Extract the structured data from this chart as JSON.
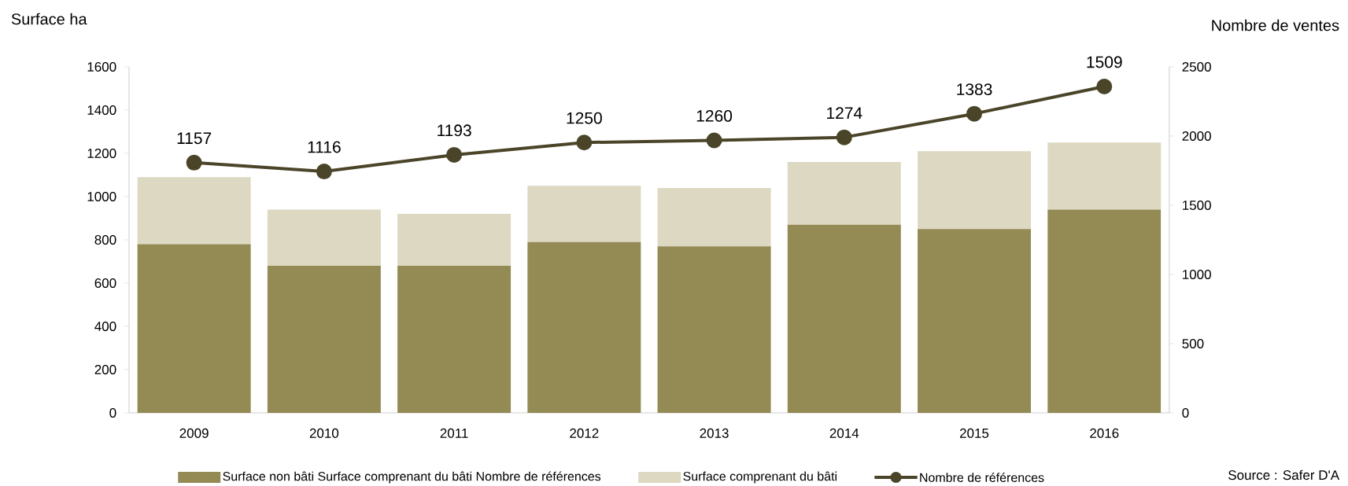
{
  "chart_data": {
    "type": "bar",
    "stacked": true,
    "categories": [
      "2009",
      "2010",
      "2011",
      "2012",
      "2013",
      "2014",
      "2015",
      "2016"
    ],
    "series": [
      {
        "name": "Surface non bâti Surface comprenant du bâti Nombre de références",
        "color": "#938a54",
        "values": [
          780,
          680,
          680,
          790,
          770,
          870,
          850,
          940
        ]
      },
      {
        "name": "Surface comprenant du bâti",
        "color": "#ddd8c2",
        "values": [
          310,
          260,
          240,
          260,
          270,
          290,
          360,
          310
        ]
      },
      {
        "name": "Nombre de références",
        "type": "line",
        "color": "#4a4429",
        "marker": "circle",
        "values": [
          1157,
          1116,
          1193,
          1250,
          1260,
          1274,
          1383,
          1509
        ],
        "value_labels": [
          "1157",
          "1116",
          "1193",
          "1250",
          "1260",
          "1274",
          "1383",
          "1509"
        ]
      }
    ],
    "ylabel": "Surface ha",
    "y2label": "Nombre de ventes",
    "ylim": [
      0,
      1600
    ],
    "yticks": [
      0,
      200,
      400,
      600,
      800,
      1000,
      1200,
      1400,
      1600
    ],
    "y2lim": [
      0,
      2500
    ],
    "y2ticks": [
      0,
      500,
      1000,
      1500,
      2000,
      2500
    ],
    "legend": "bottom",
    "annotations": [
      "Source : Safer D'A"
    ]
  }
}
